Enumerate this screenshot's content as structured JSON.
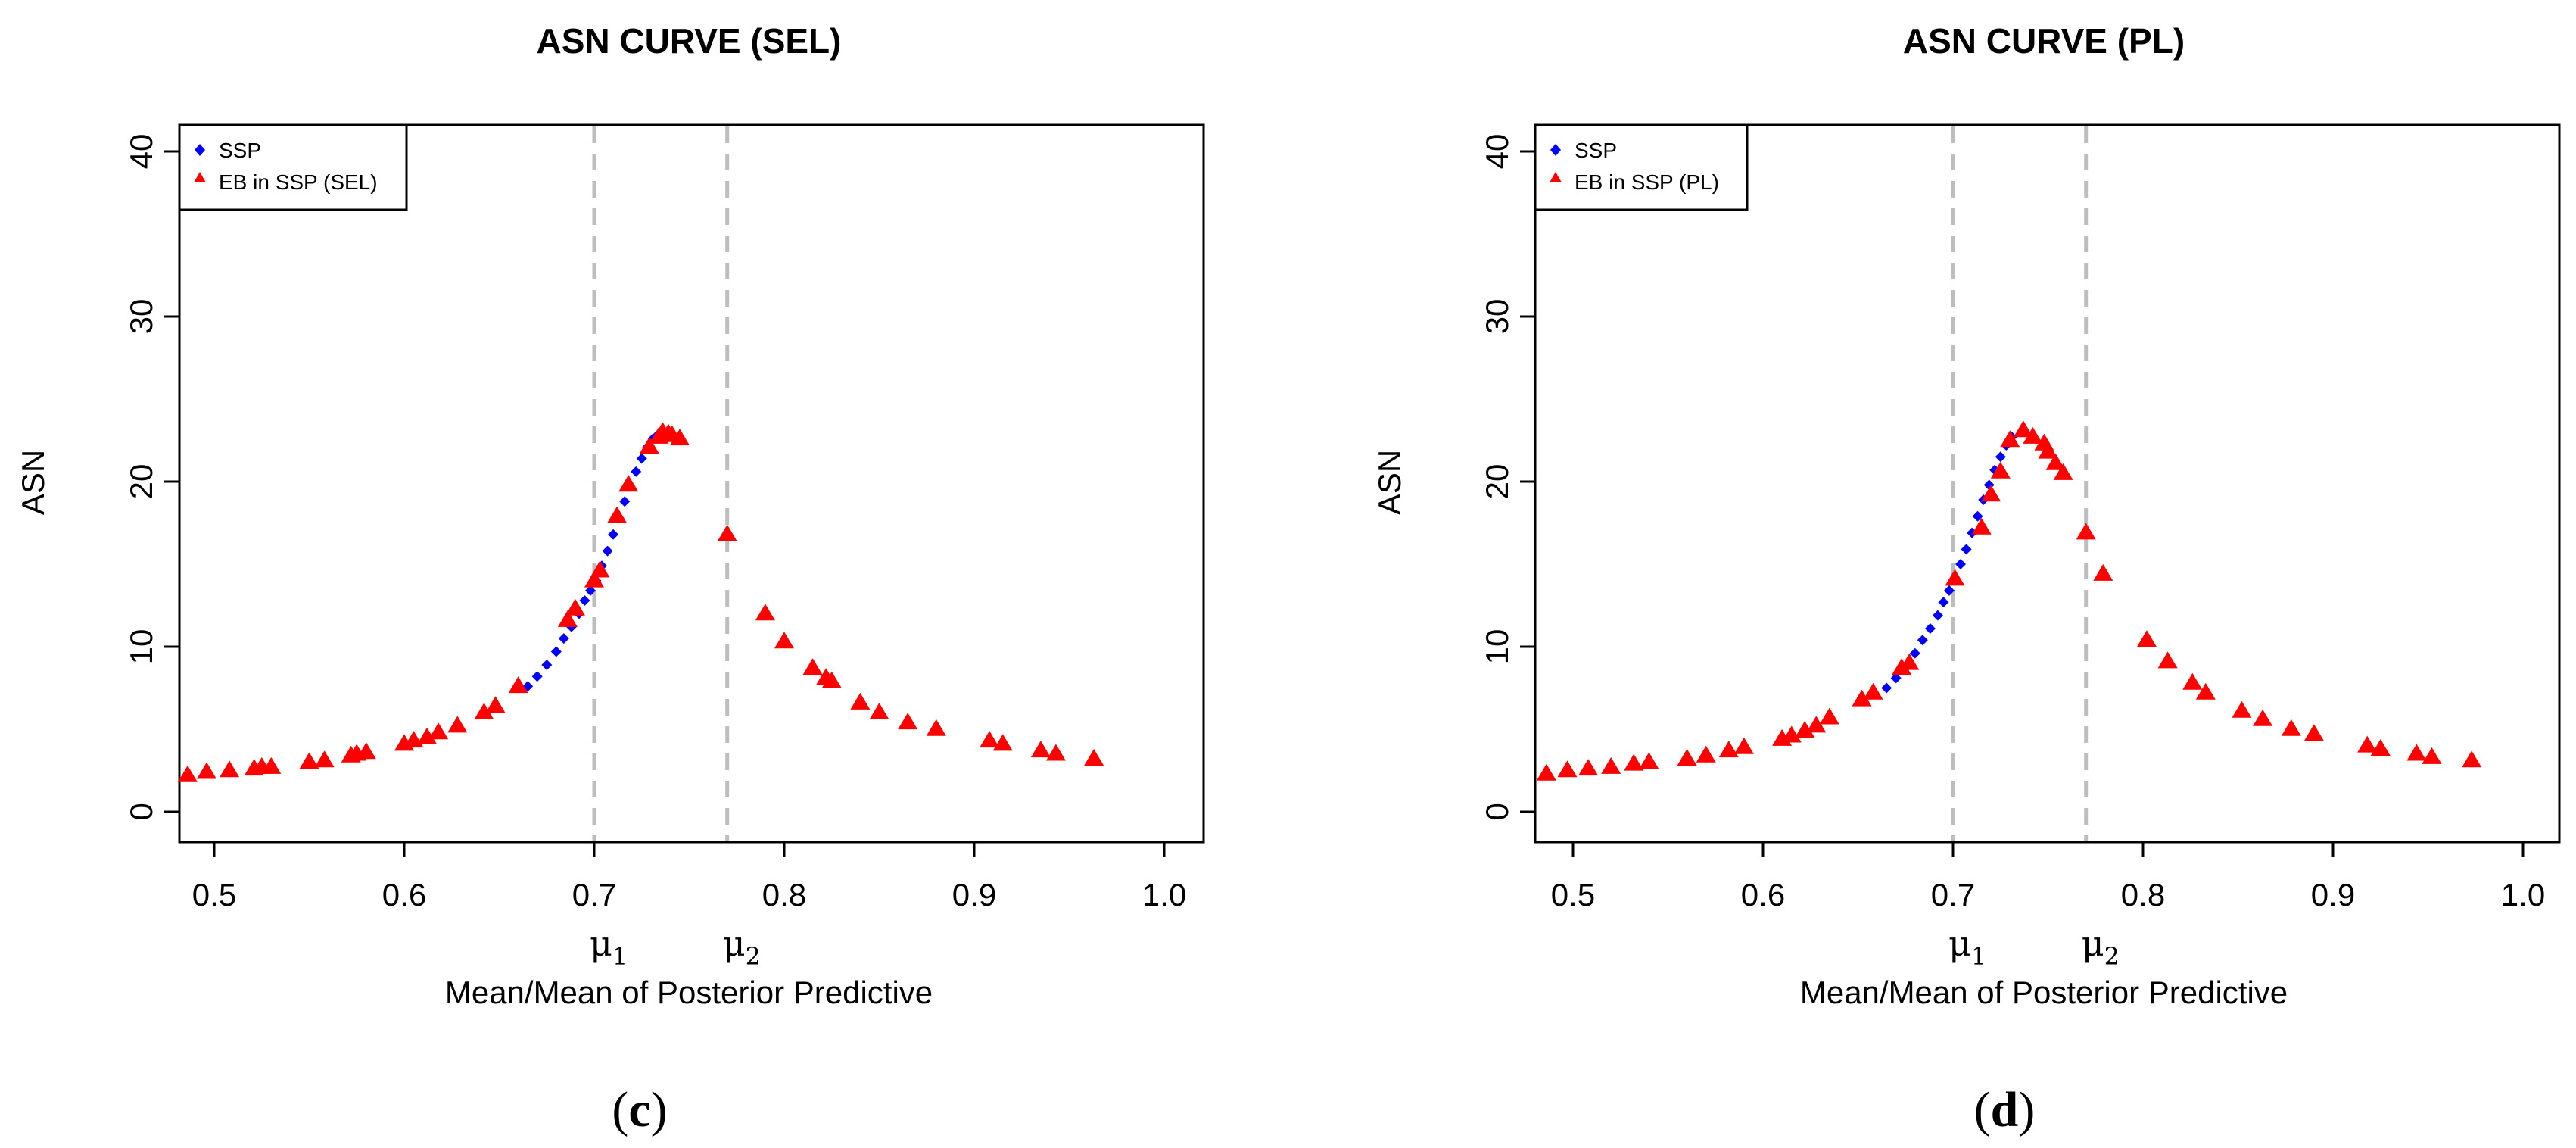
{
  "chart_data": [
    {
      "type": "scatter",
      "title": "ASN CURVE (SEL)",
      "xlabel": "Mean/Mean of Posterior Predictive",
      "ylabel": "ASN",
      "xlim": [
        0.48,
        1.0
      ],
      "ylim": [
        0,
        40
      ],
      "xticks": [
        "0.5",
        "0.6",
        "0.7",
        "0.8",
        "0.9",
        "1.0"
      ],
      "yticks": [
        "0",
        "10",
        "20",
        "30",
        "40"
      ],
      "vlines": [
        {
          "x": 0.7,
          "label": "μ",
          "sub": "1"
        },
        {
          "x": 0.77,
          "label": "μ",
          "sub": "2"
        }
      ],
      "legend": {
        "position": "top-left",
        "entries": [
          "SSP",
          "EB in SSP (SEL)"
        ]
      },
      "panel_label": {
        "open": "(",
        "letter": "c",
        "close": ")"
      },
      "series": [
        {
          "name": "SSP",
          "marker": "diamond",
          "color": "#0000ff",
          "points": [
            [
              0.665,
              7.6
            ],
            [
              0.67,
              8.2
            ],
            [
              0.675,
              8.9
            ],
            [
              0.68,
              9.7
            ],
            [
              0.684,
              10.5
            ],
            [
              0.688,
              11.2
            ],
            [
              0.692,
              12.0
            ],
            [
              0.695,
              12.8
            ],
            [
              0.698,
              13.4
            ],
            [
              0.701,
              14.0
            ],
            [
              0.704,
              14.9
            ],
            [
              0.707,
              15.8
            ],
            [
              0.71,
              16.8
            ],
            [
              0.713,
              17.8
            ],
            [
              0.716,
              18.8
            ],
            [
              0.719,
              19.7
            ],
            [
              0.722,
              20.6
            ],
            [
              0.725,
              21.4
            ],
            [
              0.728,
              22.1
            ],
            [
              0.731,
              22.6
            ],
            [
              0.734,
              22.9
            ]
          ]
        },
        {
          "name": "EB in SSP (SEL)",
          "marker": "triangle",
          "color": "#ff0000",
          "points": [
            [
              0.486,
              2.2
            ],
            [
              0.496,
              2.4
            ],
            [
              0.508,
              2.5
            ],
            [
              0.521,
              2.6
            ],
            [
              0.525,
              2.7
            ],
            [
              0.53,
              2.7
            ],
            [
              0.55,
              3.0
            ],
            [
              0.558,
              3.1
            ],
            [
              0.572,
              3.4
            ],
            [
              0.575,
              3.5
            ],
            [
              0.58,
              3.6
            ],
            [
              0.6,
              4.1
            ],
            [
              0.605,
              4.3
            ],
            [
              0.612,
              4.5
            ],
            [
              0.618,
              4.8
            ],
            [
              0.628,
              5.2
            ],
            [
              0.642,
              6.0
            ],
            [
              0.648,
              6.4
            ],
            [
              0.66,
              7.6
            ],
            [
              0.686,
              11.6
            ],
            [
              0.69,
              12.3
            ],
            [
              0.7,
              14.0
            ],
            [
              0.703,
              14.6
            ],
            [
              0.712,
              17.9
            ],
            [
              0.718,
              19.8
            ],
            [
              0.729,
              22.1
            ],
            [
              0.734,
              22.7
            ],
            [
              0.736,
              23.0
            ],
            [
              0.739,
              22.9
            ],
            [
              0.741,
              22.8
            ],
            [
              0.745,
              22.6
            ],
            [
              0.77,
              16.8
            ],
            [
              0.79,
              12.0
            ],
            [
              0.8,
              10.3
            ],
            [
              0.815,
              8.7
            ],
            [
              0.822,
              8.1
            ],
            [
              0.825,
              7.9
            ],
            [
              0.84,
              6.6
            ],
            [
              0.85,
              6.0
            ],
            [
              0.865,
              5.4
            ],
            [
              0.88,
              5.0
            ],
            [
              0.908,
              4.3
            ],
            [
              0.915,
              4.1
            ],
            [
              0.935,
              3.7
            ],
            [
              0.943,
              3.5
            ],
            [
              0.963,
              3.2
            ]
          ]
        }
      ]
    },
    {
      "type": "scatter",
      "title": "ASN CURVE (PL)",
      "xlabel": "Mean/Mean of Posterior Predictive",
      "ylabel": "ASN",
      "xlim": [
        0.48,
        1.0
      ],
      "ylim": [
        0,
        40
      ],
      "xticks": [
        "0.5",
        "0.6",
        "0.7",
        "0.8",
        "0.9",
        "1.0"
      ],
      "yticks": [
        "0",
        "10",
        "20",
        "30",
        "40"
      ],
      "vlines": [
        {
          "x": 0.7,
          "label": "μ",
          "sub": "1"
        },
        {
          "x": 0.77,
          "label": "μ",
          "sub": "2"
        }
      ],
      "legend": {
        "position": "top-left",
        "entries": [
          "SSP",
          "EB in SSP (PL)"
        ]
      },
      "panel_label": {
        "open": "(",
        "letter": "d",
        "close": ")"
      },
      "series": [
        {
          "name": "SSP",
          "marker": "diamond",
          "color": "#0000ff",
          "points": [
            [
              0.665,
              7.5
            ],
            [
              0.67,
              8.1
            ],
            [
              0.675,
              8.8
            ],
            [
              0.68,
              9.6
            ],
            [
              0.684,
              10.4
            ],
            [
              0.688,
              11.1
            ],
            [
              0.692,
              11.9
            ],
            [
              0.695,
              12.7
            ],
            [
              0.698,
              13.4
            ],
            [
              0.701,
              14.1
            ],
            [
              0.704,
              15.0
            ],
            [
              0.707,
              15.9
            ],
            [
              0.71,
              16.9
            ],
            [
              0.713,
              17.9
            ],
            [
              0.716,
              18.9
            ],
            [
              0.719,
              19.8
            ],
            [
              0.722,
              20.7
            ],
            [
              0.725,
              21.5
            ],
            [
              0.728,
              22.2
            ],
            [
              0.731,
              22.7
            ]
          ]
        },
        {
          "name": "EB in SSP (PL)",
          "marker": "triangle",
          "color": "#ff0000",
          "points": [
            [
              0.486,
              2.3
            ],
            [
              0.497,
              2.5
            ],
            [
              0.508,
              2.6
            ],
            [
              0.52,
              2.7
            ],
            [
              0.532,
              2.9
            ],
            [
              0.54,
              3.0
            ],
            [
              0.56,
              3.2
            ],
            [
              0.57,
              3.4
            ],
            [
              0.582,
              3.7
            ],
            [
              0.59,
              3.9
            ],
            [
              0.61,
              4.4
            ],
            [
              0.615,
              4.6
            ],
            [
              0.622,
              4.9
            ],
            [
              0.628,
              5.2
            ],
            [
              0.635,
              5.7
            ],
            [
              0.652,
              6.8
            ],
            [
              0.658,
              7.2
            ],
            [
              0.673,
              8.7
            ],
            [
              0.677,
              9.0
            ],
            [
              0.701,
              14.1
            ],
            [
              0.715,
              17.2
            ],
            [
              0.72,
              19.2
            ],
            [
              0.725,
              20.6
            ],
            [
              0.73,
              22.5
            ],
            [
              0.737,
              23.1
            ],
            [
              0.742,
              22.7
            ],
            [
              0.748,
              22.3
            ],
            [
              0.75,
              21.8
            ],
            [
              0.754,
              21.1
            ],
            [
              0.758,
              20.5
            ],
            [
              0.77,
              16.9
            ],
            [
              0.779,
              14.4
            ],
            [
              0.802,
              10.4
            ],
            [
              0.813,
              9.1
            ],
            [
              0.826,
              7.8
            ],
            [
              0.833,
              7.2
            ],
            [
              0.852,
              6.1
            ],
            [
              0.863,
              5.6
            ],
            [
              0.878,
              5.0
            ],
            [
              0.89,
              4.7
            ],
            [
              0.918,
              4.0
            ],
            [
              0.925,
              3.8
            ],
            [
              0.944,
              3.5
            ],
            [
              0.952,
              3.3
            ],
            [
              0.973,
              3.1
            ]
          ]
        }
      ]
    }
  ]
}
